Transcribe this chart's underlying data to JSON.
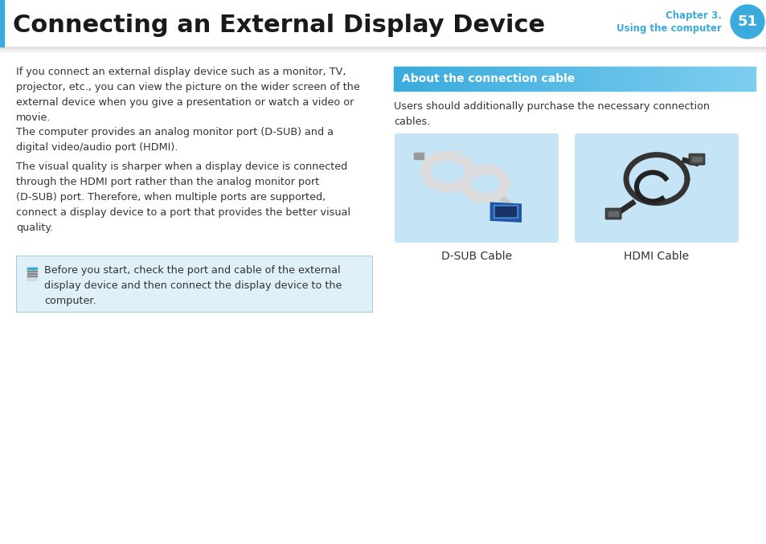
{
  "title": "Connecting an External Display Device",
  "chapter_text": "Chapter 3.",
  "chapter_sub": "Using the computer",
  "page_num": "51",
  "bg_color": "#ffffff",
  "left_bar_color": "#3aabdc",
  "body_color": "#333333",
  "para1": "If you connect an external display device such as a monitor, TV,\nprojector, etc., you can view the picture on the wider screen of the\nexternal device when you give a presentation or watch a video or\nmovie.",
  "para2": "The computer provides an analog monitor port (D-SUB) and a\ndigital video/audio port (HDMI).",
  "para3": "The visual quality is sharper when a display device is connected\nthrough the HDMI port rather than the analog monitor port\n(D-SUB) port. Therefore, when multiple ports are supported,\nconnect a display device to a port that provides the better visual\nquality.",
  "note_text": "Before you start, check the port and cable of the external\ndisplay device and then connect the display device to the\ncomputer.",
  "note_bg": "#dff0f8",
  "note_border": "#aaccdd",
  "sidebar_title": "About the connection cable",
  "sidebar_title_color": "#ffffff",
  "sidebar_title_bg_left": "#3aabdc",
  "sidebar_title_bg_right": "#7dcef0",
  "sidebar_text": "Users should additionally purchase the necessary connection\ncables.",
  "dsub_label": "D-SUB Cable",
  "hdmi_label": "HDMI Cable",
  "cable_img_bg": "#c5e4f5",
  "divider_color": "#cccccc",
  "chapter_color": "#3aabdc",
  "page_circle_color": "#3aabdc",
  "page_num_color": "#ffffff"
}
